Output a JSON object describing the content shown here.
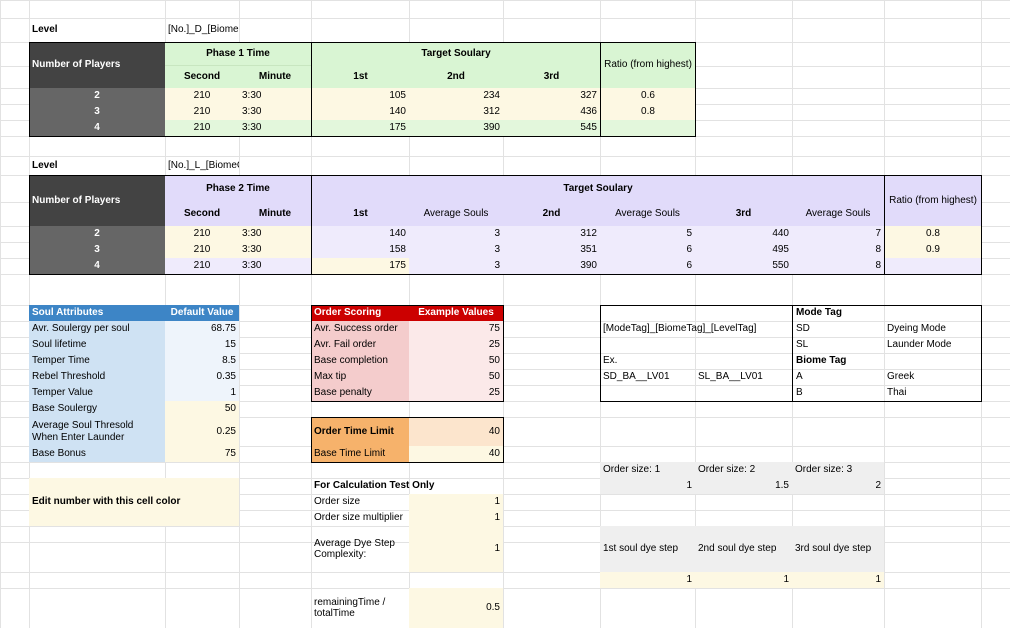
{
  "sheet": {
    "level1": {
      "level_label": "Level",
      "level_code": "[No.]_D_[BiomeCode]",
      "players_header": "Number of Players",
      "phase_header": "Phase 1 Time",
      "second_header": "Second",
      "minute_header": "Minute",
      "target_header": "Target Soulary",
      "first_header": "1st",
      "second_place_header": "2nd",
      "third_header": "3rd",
      "ratio_header": "Ratio (from highest)",
      "rows": [
        {
          "players": "2",
          "second": "210",
          "minute": "3:30",
          "first": "105",
          "second_place": "234",
          "third": "327",
          "ratio": "0.6"
        },
        {
          "players": "3",
          "second": "210",
          "minute": "3:30",
          "first": "140",
          "second_place": "312",
          "third": "436",
          "ratio": "0.8"
        },
        {
          "players": "4",
          "second": "210",
          "minute": "3:30",
          "first": "175",
          "second_place": "390",
          "third": "545",
          "ratio": ""
        }
      ]
    },
    "level2": {
      "level_label": "Level",
      "level_code": "[No.]_L_[BiomeCode]",
      "players_header": "Number of Players",
      "phase_header": "Phase 2 Time",
      "second_header": "Second",
      "minute_header": "Minute",
      "target_header": "Target Soulary",
      "first_header": "1st",
      "avg_header": "Average Souls",
      "second_place_header": "2nd",
      "third_header": "3rd",
      "ratio_header": "Ratio (from highest)",
      "rows": [
        {
          "players": "2",
          "second": "210",
          "minute": "3:30",
          "first": "140",
          "avg1": "3",
          "second_place": "312",
          "avg2": "5",
          "third": "440",
          "avg3": "7",
          "ratio": "0.8"
        },
        {
          "players": "3",
          "second": "210",
          "minute": "3:30",
          "first": "158",
          "avg1": "3",
          "second_place": "351",
          "avg2": "6",
          "third": "495",
          "avg3": "8",
          "ratio": "0.9"
        },
        {
          "players": "4",
          "second": "210",
          "minute": "3:30",
          "first": "175",
          "avg1": "3",
          "second_place": "390",
          "avg2": "6",
          "third": "550",
          "avg3": "8",
          "ratio": ""
        }
      ]
    },
    "soul_attributes": {
      "header": "Soul Attributes",
      "default_header": "Default Value",
      "rows": [
        {
          "label": "Avr. Soulergy per soul",
          "value": "68.75"
        },
        {
          "label": "Soul lifetime",
          "value": "15"
        },
        {
          "label": "Temper Time",
          "value": "8.5"
        },
        {
          "label": "Rebel Threshold",
          "value": "0.35"
        },
        {
          "label": "Temper Value",
          "value": "1"
        },
        {
          "label": "Base Soulergy",
          "value": "50"
        },
        {
          "label": "Average Soul Thresold When Enter Launder",
          "value": "0.25"
        },
        {
          "label": "Base Bonus",
          "value": "75"
        }
      ]
    },
    "order_scoring": {
      "header": "Order Scoring",
      "example_header": "Example Values",
      "rows": [
        {
          "label": "Avr. Success order",
          "value": "75"
        },
        {
          "label": "Avr. Fail order",
          "value": "25"
        },
        {
          "label": "Base completion",
          "value": "50"
        },
        {
          "label": "Max tip",
          "value": "50"
        },
        {
          "label": "Base penalty",
          "value": "25"
        }
      ]
    },
    "time_limit": {
      "order_label": "Order Time Limit",
      "order_value": "40",
      "base_label": "Base Time Limit",
      "base_value": "40"
    },
    "tags": {
      "pattern": "[ModeTag]_[BiomeTag]_[LevelTag]",
      "ex_label": "Ex.",
      "ex1": "SD_BA__LV01",
      "ex2": "SL_BA__LV01",
      "mode_header": "Mode Tag",
      "modes": [
        {
          "code": "SD",
          "name": "Dyeing Mode"
        },
        {
          "code": "SL",
          "name": "Launder Mode"
        }
      ],
      "biome_header": "Biome Tag",
      "biomes": [
        {
          "code": "A",
          "name": "Greek"
        },
        {
          "code": "B",
          "name": "Thai"
        }
      ]
    },
    "legend": {
      "text": "Edit number with this cell color"
    },
    "calc": {
      "header": "For Calculation Test Only",
      "rows": [
        {
          "label": "Order size",
          "value": "1"
        },
        {
          "label": "Order size multiplier",
          "value": "1"
        },
        {
          "label": "Average Dye Step Complexity:",
          "value": "1"
        },
        {
          "label": "remainingTime / totalTime",
          "value": "0.5"
        }
      ]
    },
    "order_size": {
      "labels": [
        "Order size: 1",
        "Order size: 2",
        "Order size: 3"
      ],
      "values": [
        "1",
        "1.5",
        "2"
      ]
    },
    "dye_steps": {
      "labels": [
        "1st soul dye step",
        "2nd soul dye step",
        "3rd soul dye step"
      ],
      "values": [
        "1",
        "1",
        "1"
      ]
    },
    "colors": {
      "dark_header": "#434343",
      "dark_row": "#666666",
      "green_header": "#d9f5d3",
      "green_band": "#e3f7dc",
      "cream": "#fdf8e3",
      "purple_header": "#e1dbfa",
      "purple_band": "#efebfc",
      "blue_header": "#3d85c6",
      "blue_row": "#cfe2f3",
      "red_header": "#cc0000",
      "red_row": "#f4cccc",
      "orange": "#f6b26b",
      "peach": "#fce5cd",
      "gridline": "#e2e2e2",
      "grey_cell": "#efefef"
    }
  }
}
